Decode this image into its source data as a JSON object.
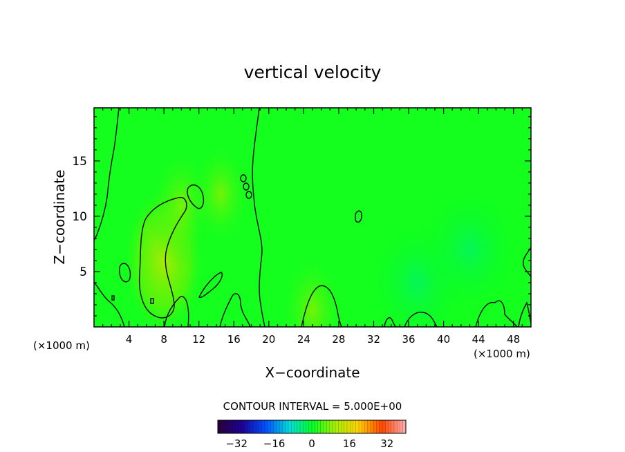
{
  "chart_data": {
    "type": "heatmap",
    "title": "vertical velocity",
    "xlabel": "X−coordinate",
    "ylabel": "Z−coordinate",
    "x_unit": "(×1000 m)",
    "xlim": [
      0,
      50
    ],
    "ylim": [
      0,
      19.8
    ],
    "x_ticks": [
      4,
      8,
      12,
      16,
      20,
      24,
      28,
      32,
      36,
      40,
      44,
      48
    ],
    "y_ticks": [
      5,
      10,
      15
    ],
    "contour_interval_label": "CONTOUR INTERVAL = 5.000E+00",
    "colorbar": {
      "range": [
        -40,
        40
      ],
      "ticks": [
        -32,
        -16,
        0,
        16,
        32
      ],
      "tick_labels": [
        "−32",
        "−16",
        "0",
        "16",
        "32"
      ]
    },
    "features": [
      {
        "kind": "updraft",
        "x": 8,
        "z": 6,
        "value": 8
      },
      {
        "kind": "updraft",
        "x": 10,
        "z": 11,
        "value": 5
      },
      {
        "kind": "updraft",
        "x": 14.5,
        "z": 12,
        "value": 4
      },
      {
        "kind": "updraft",
        "x": 25,
        "z": 1.5,
        "value": 5
      },
      {
        "kind": "downdraft",
        "x": 37,
        "z": 4,
        "value": -3
      },
      {
        "kind": "downdraft",
        "x": 43,
        "z": 7,
        "value": -2
      }
    ]
  }
}
